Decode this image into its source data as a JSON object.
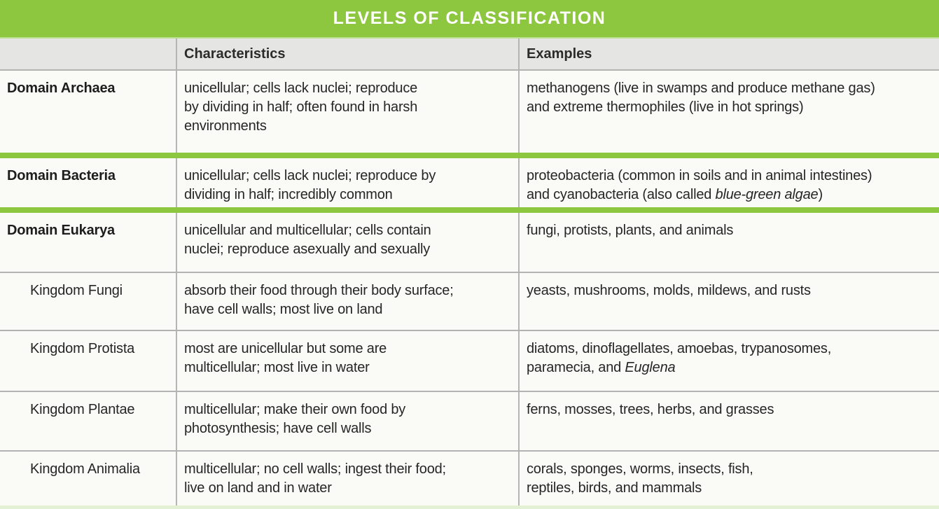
{
  "title": "LEVELS OF CLASSIFICATION",
  "columns": {
    "characteristics": "Characteristics",
    "examples": "Examples"
  },
  "colors": {
    "accent_green": "#8dc63f",
    "header_gray": "#e5e5e4",
    "row_background": "#fafaf6",
    "bottom_strip_green": "#e4f0d4",
    "title_text": "#ffffff",
    "body_text": "#262626"
  },
  "rows": [
    {
      "label": "Domain Archaea",
      "level": "domain",
      "characteristics": "unicellular; cells lack nuclei; reproduce\nby dividing in half; often found in harsh\nenvironments",
      "examples": [
        {
          "text": "methanogens (live in swamps and produce methane gas)\nand extreme thermophiles (live in hot springs)",
          "italic": false
        }
      ]
    },
    {
      "label": "Domain Bacteria",
      "level": "domain",
      "characteristics": "unicellular; cells lack nuclei; reproduce by\ndividing in half; incredibly common",
      "examples": [
        {
          "text": "proteobacteria (common in soils and in animal intestines)\nand cyanobacteria (also called ",
          "italic": false
        },
        {
          "text": "blue-green algae",
          "italic": true
        },
        {
          "text": ")",
          "italic": false
        }
      ]
    },
    {
      "label": "Domain Eukarya",
      "level": "domain",
      "characteristics": "unicellular and multicellular; cells contain\nnuclei; reproduce asexually and sexually",
      "examples": [
        {
          "text": "fungi, protists, plants, and animals",
          "italic": false
        }
      ]
    },
    {
      "label": "Kingdom Fungi",
      "level": "kingdom",
      "characteristics": "absorb their food through their body surface;\nhave cell walls; most live on land",
      "examples": [
        {
          "text": "yeasts, mushrooms, molds, mildews, and rusts",
          "italic": false
        }
      ]
    },
    {
      "label": "Kingdom Protista",
      "level": "kingdom",
      "characteristics": "most are unicellular but some are\nmulticellular; most live in water",
      "examples": [
        {
          "text": "diatoms, dinoflagellates, amoebas, trypanosomes,\nparamecia, and ",
          "italic": false
        },
        {
          "text": "Euglena",
          "italic": true
        }
      ]
    },
    {
      "label": "Kingdom Plantae",
      "level": "kingdom",
      "characteristics": "multicellular; make their own food by\nphotosynthesis; have cell walls",
      "examples": [
        {
          "text": "ferns, mosses, trees, herbs, and grasses",
          "italic": false
        }
      ]
    },
    {
      "label": "Kingdom Animalia",
      "level": "kingdom",
      "characteristics": "multicellular; no cell walls; ingest their food;\nlive on land and in water",
      "examples": [
        {
          "text": "corals, sponges, worms, insects, fish,\nreptiles, birds, and mammals",
          "italic": false
        }
      ]
    }
  ]
}
